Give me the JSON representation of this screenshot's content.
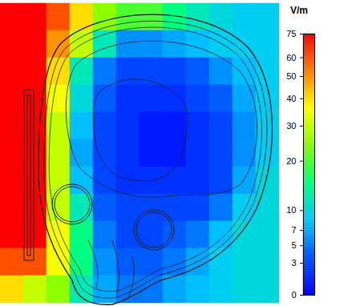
{
  "chart_data": {
    "type": "heatmap",
    "values": [
      [
        75,
        75,
        60,
        40,
        25,
        20,
        20,
        15,
        12,
        10,
        9,
        9
      ],
      [
        75,
        75,
        50,
        30,
        12,
        6,
        6,
        7,
        8,
        9,
        9,
        9
      ],
      [
        75,
        75,
        40,
        12,
        5,
        3,
        3,
        3,
        4,
        6,
        8,
        9
      ],
      [
        75,
        75,
        35,
        10,
        4,
        2,
        2,
        2,
        3,
        4,
        7,
        9
      ],
      [
        75,
        75,
        30,
        8,
        3,
        2,
        1,
        1,
        2,
        3,
        6,
        9
      ],
      [
        75,
        75,
        30,
        7,
        3,
        2,
        1,
        1,
        2,
        3,
        6,
        9
      ],
      [
        75,
        75,
        30,
        8,
        3,
        2,
        2,
        2,
        2,
        3,
        7,
        10
      ],
      [
        75,
        75,
        30,
        12,
        4,
        3,
        3,
        3,
        3,
        5,
        9,
        10
      ],
      [
        75,
        75,
        35,
        15,
        5,
        3,
        3,
        4,
        5,
        8,
        10,
        10
      ],
      [
        60,
        60,
        35,
        15,
        6,
        4,
        4,
        5,
        7,
        9,
        10,
        10
      ],
      [
        40,
        30,
        25,
        12,
        7,
        5,
        5,
        7,
        8,
        9,
        10,
        10
      ]
    ],
    "color_label": "V/m",
    "color_range": [
      0,
      75
    ],
    "color_ticks": [
      0,
      3,
      5,
      7,
      10,
      20,
      30,
      40,
      50,
      60,
      75
    ]
  }
}
